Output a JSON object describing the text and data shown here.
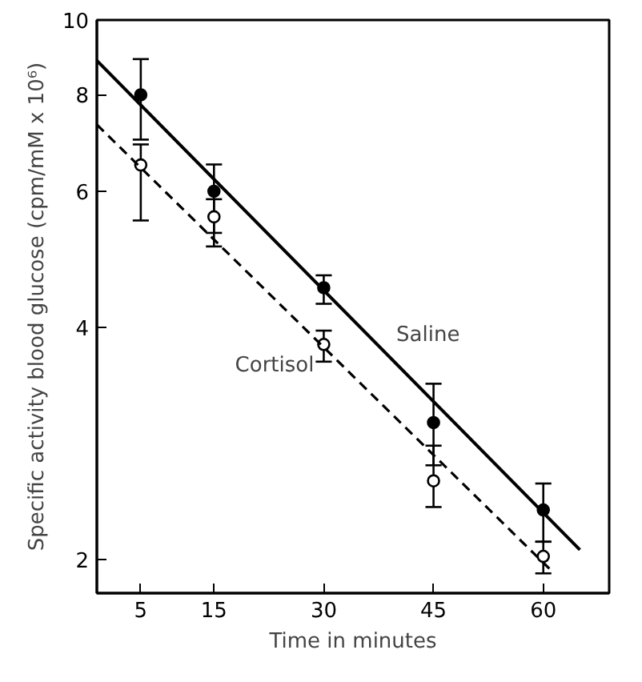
{
  "chart_data": {
    "type": "scatter",
    "xlabel": "Time in minutes",
    "ylabel": "Specific activity blood glucose (cpm/mM x 10⁶)",
    "log": "y",
    "grid": false,
    "legend": false,
    "marker": "circle",
    "xlim": [
      -1,
      69
    ],
    "xticks": [
      5,
      15,
      30,
      45,
      60
    ],
    "ylim": [
      1.81,
      10
    ],
    "yticks": [
      2,
      4,
      6,
      8,
      10
    ],
    "x": [
      5,
      15,
      30,
      45,
      60
    ],
    "series": [
      {
        "color": "#000000",
        "values": [
          8.0,
          6.0,
          4.5,
          3.01,
          2.32
        ],
        "errors": [
          [
            7.0,
            8.9
          ],
          [
            5.3,
            6.5
          ],
          [
            4.29,
            4.67
          ],
          [
            2.65,
            3.38
          ],
          [
            2.11,
            2.51
          ]
        ]
      },
      {
        "color": "#ffffff",
        "values": [
          6.49,
          5.56,
          3.8,
          2.53,
          2.02
        ],
        "errors": [
          [
            5.5,
            6.9
          ],
          [
            5.09,
            5.86
          ],
          [
            3.61,
            3.96
          ],
          [
            2.34,
            2.81
          ],
          [
            1.92,
            2.11
          ]
        ]
      },
      {
        "type": "line",
        "name": "Saline",
        "marker": "none",
        "color": "#000000",
        "line_style": "solid",
        "x": [
          -1,
          65
        ],
        "values": [
          8.86,
          2.06
        ]
      },
      {
        "type": "line",
        "name": "Cortisol",
        "marker": "none",
        "color": "#000000",
        "line_style": "dashed",
        "x": [
          -1,
          61
        ],
        "values": [
          7.32,
          1.94
        ]
      }
    ]
  }
}
